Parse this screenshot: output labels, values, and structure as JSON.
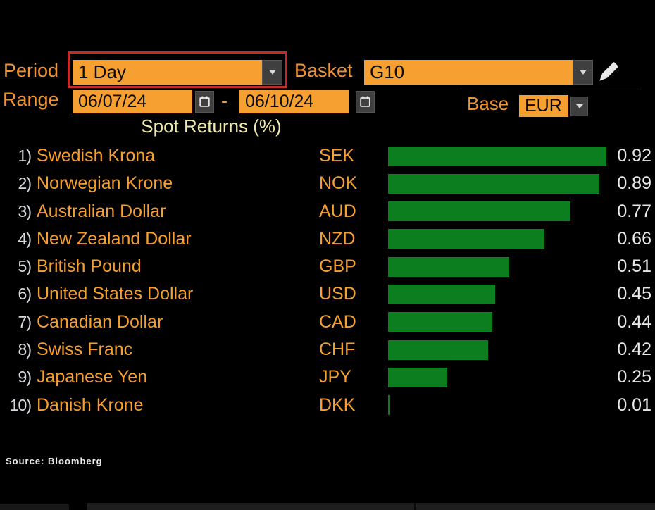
{
  "toolbar": {
    "period": {
      "label": "Period",
      "value": "1 Day",
      "highlighted": true
    },
    "basket": {
      "label": "Basket",
      "value": "G10"
    },
    "range": {
      "label": "Range",
      "start": "06/07/24",
      "separator": "-",
      "end": "06/10/24"
    },
    "base": {
      "label": "Base",
      "value": "EUR"
    }
  },
  "chart_data": {
    "type": "bar",
    "orientation": "horizontal",
    "title": "Spot Returns (%)",
    "value_unit": "%",
    "xlim": [
      0,
      0.92
    ],
    "grid": false,
    "legend": false,
    "categories": [
      "Swedish Krona",
      "Norwegian Krone",
      "Australian Dollar",
      "New Zealand Dollar",
      "British Pound",
      "United States Dollar",
      "Canadian Dollar",
      "Swiss Franc",
      "Japanese Yen",
      "Danish Krone"
    ],
    "codes": [
      "SEK",
      "NOK",
      "AUD",
      "NZD",
      "GBP",
      "USD",
      "CAD",
      "CHF",
      "JPY",
      "DKK"
    ],
    "values": [
      0.92,
      0.89,
      0.77,
      0.66,
      0.51,
      0.45,
      0.44,
      0.42,
      0.25,
      0.01
    ]
  },
  "footer": {
    "source": "Source: Bloomberg"
  },
  "colors": {
    "amber": "#f5a030",
    "label_orange": "#ef9435",
    "green": "#0d7e20",
    "red_highlight": "#c32a28",
    "title_yellow": "#efe8a8",
    "value_white": "#e9e9e9",
    "row_number": "#d7dbe0",
    "button_gray": "#3f3f3f",
    "field_text": "#0b0b0b"
  }
}
